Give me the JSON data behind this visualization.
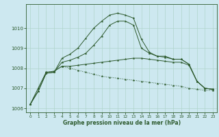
{
  "background_color": "#cde8f0",
  "line_color": "#2d5a2d",
  "grid_color": "#b0d4cc",
  "xlabel": "Graphe pression niveau de la mer (hPa)",
  "ylim": [
    1005.8,
    1011.2
  ],
  "xlim": [
    -0.5,
    23.5
  ],
  "yticks": [
    1006,
    1007,
    1008,
    1009,
    1010
  ],
  "xticks": [
    0,
    1,
    2,
    3,
    4,
    5,
    6,
    7,
    8,
    9,
    10,
    11,
    12,
    13,
    14,
    15,
    16,
    17,
    18,
    19,
    20,
    21,
    22,
    23
  ],
  "series": {
    "top": [
      1006.2,
      1006.85,
      1007.75,
      1007.8,
      1008.5,
      1008.7,
      1009.0,
      1009.5,
      1010.0,
      1010.35,
      1010.65,
      1010.75,
      1010.65,
      1010.5,
      1009.45,
      1008.8,
      1008.6,
      1008.6,
      1008.45,
      1008.45,
      1008.2,
      1007.35,
      1007.0,
      1006.95
    ],
    "high": [
      1006.2,
      1006.85,
      1007.75,
      1007.8,
      1008.3,
      1008.4,
      1008.55,
      1008.75,
      1009.15,
      1009.6,
      1010.15,
      1010.35,
      1010.35,
      1010.15,
      1009.0,
      1008.75,
      1008.6,
      1008.55,
      1008.45,
      1008.45,
      1008.2,
      1007.35,
      1007.0,
      1006.95
    ],
    "mid": [
      1006.2,
      1007.0,
      1007.8,
      1007.85,
      1008.1,
      1008.1,
      1008.15,
      1008.2,
      1008.25,
      1008.3,
      1008.35,
      1008.4,
      1008.45,
      1008.5,
      1008.5,
      1008.45,
      1008.4,
      1008.35,
      1008.3,
      1008.3,
      1008.15,
      1007.35,
      1007.0,
      1006.95
    ],
    "low": [
      1006.2,
      1007.0,
      1007.8,
      1007.85,
      1008.1,
      1008.0,
      1007.9,
      1007.8,
      1007.7,
      1007.6,
      1007.55,
      1007.5,
      1007.45,
      1007.4,
      1007.35,
      1007.3,
      1007.25,
      1007.2,
      1007.15,
      1007.1,
      1007.0,
      1006.95,
      1006.9,
      1006.9
    ]
  }
}
